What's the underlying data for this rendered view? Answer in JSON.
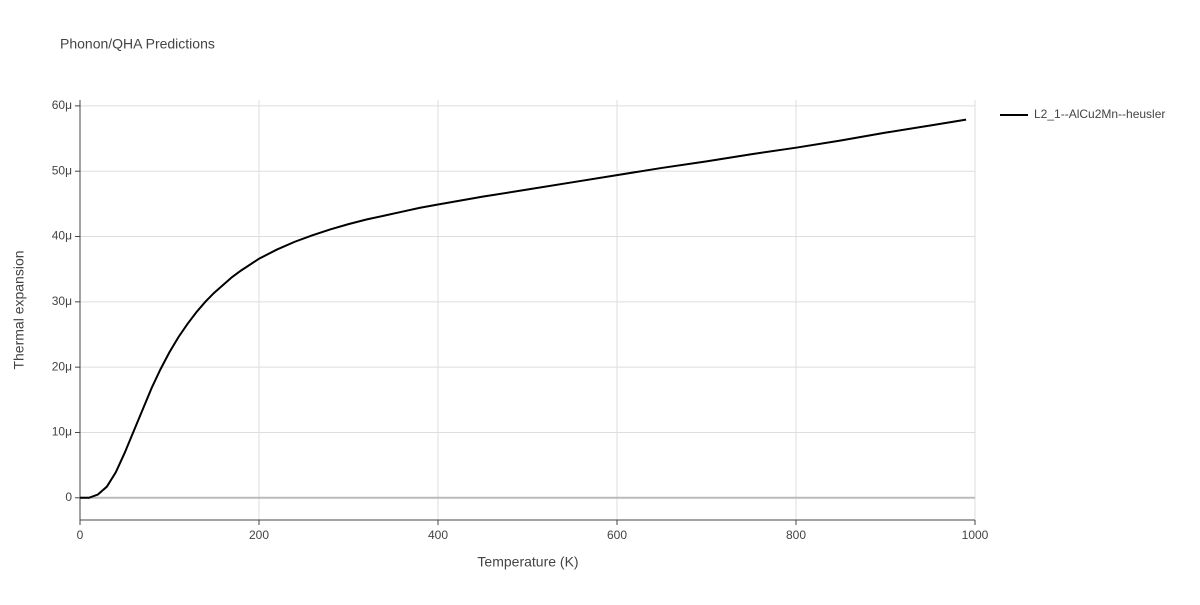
{
  "chart_data": {
    "type": "line",
    "title": "Phonon/QHA Predictions",
    "x_label": "Temperature (K)",
    "y_label": "Thermal expansion",
    "x": [
      0,
      10,
      20,
      30,
      40,
      50,
      60,
      70,
      80,
      90,
      100,
      110,
      120,
      130,
      140,
      150,
      160,
      170,
      180,
      190,
      200,
      220,
      240,
      260,
      280,
      300,
      320,
      340,
      360,
      380,
      400,
      450,
      500,
      550,
      600,
      650,
      700,
      750,
      800,
      850,
      900,
      950,
      990
    ],
    "series": [
      {
        "name": "L2_1--AlCu2Mn--heusler",
        "color": "#000000",
        "values": [
          0,
          0,
          5e-07,
          1.7e-06,
          3.9e-06,
          6.9e-06,
          1.02e-05,
          1.35e-05,
          1.68e-05,
          1.97e-05,
          2.23e-05,
          2.46e-05,
          2.66e-05,
          2.84e-05,
          3e-05,
          3.14e-05,
          3.26e-05,
          3.38e-05,
          3.48e-05,
          3.57e-05,
          3.66e-05,
          3.8e-05,
          3.92e-05,
          4.02e-05,
          4.11e-05,
          4.19e-05,
          4.26e-05,
          4.32e-05,
          4.38e-05,
          4.44e-05,
          4.49e-05,
          4.61e-05,
          4.72e-05,
          4.83e-05,
          4.94e-05,
          5.05e-05,
          5.15e-05,
          5.26e-05,
          5.36e-05,
          5.47e-05,
          5.59e-05,
          5.7e-05,
          5.79e-05
        ]
      }
    ],
    "xlim": [
      0,
      1000
    ],
    "xticks": [
      0,
      200,
      400,
      600,
      800,
      1000
    ],
    "ylim": [
      -3.4e-06,
      6.09e-05
    ],
    "yticks": [
      0,
      {
        "value": 1e-05,
        "label": "10μ"
      },
      {
        "value": 2e-05,
        "label": "20μ"
      },
      {
        "value": 3e-05,
        "label": "30μ"
      },
      {
        "value": 4e-05,
        "label": "40μ"
      },
      {
        "value": 5e-05,
        "label": "50μ"
      },
      {
        "value": 6e-05,
        "label": "60μ"
      }
    ],
    "grid": true,
    "legend": "right"
  }
}
